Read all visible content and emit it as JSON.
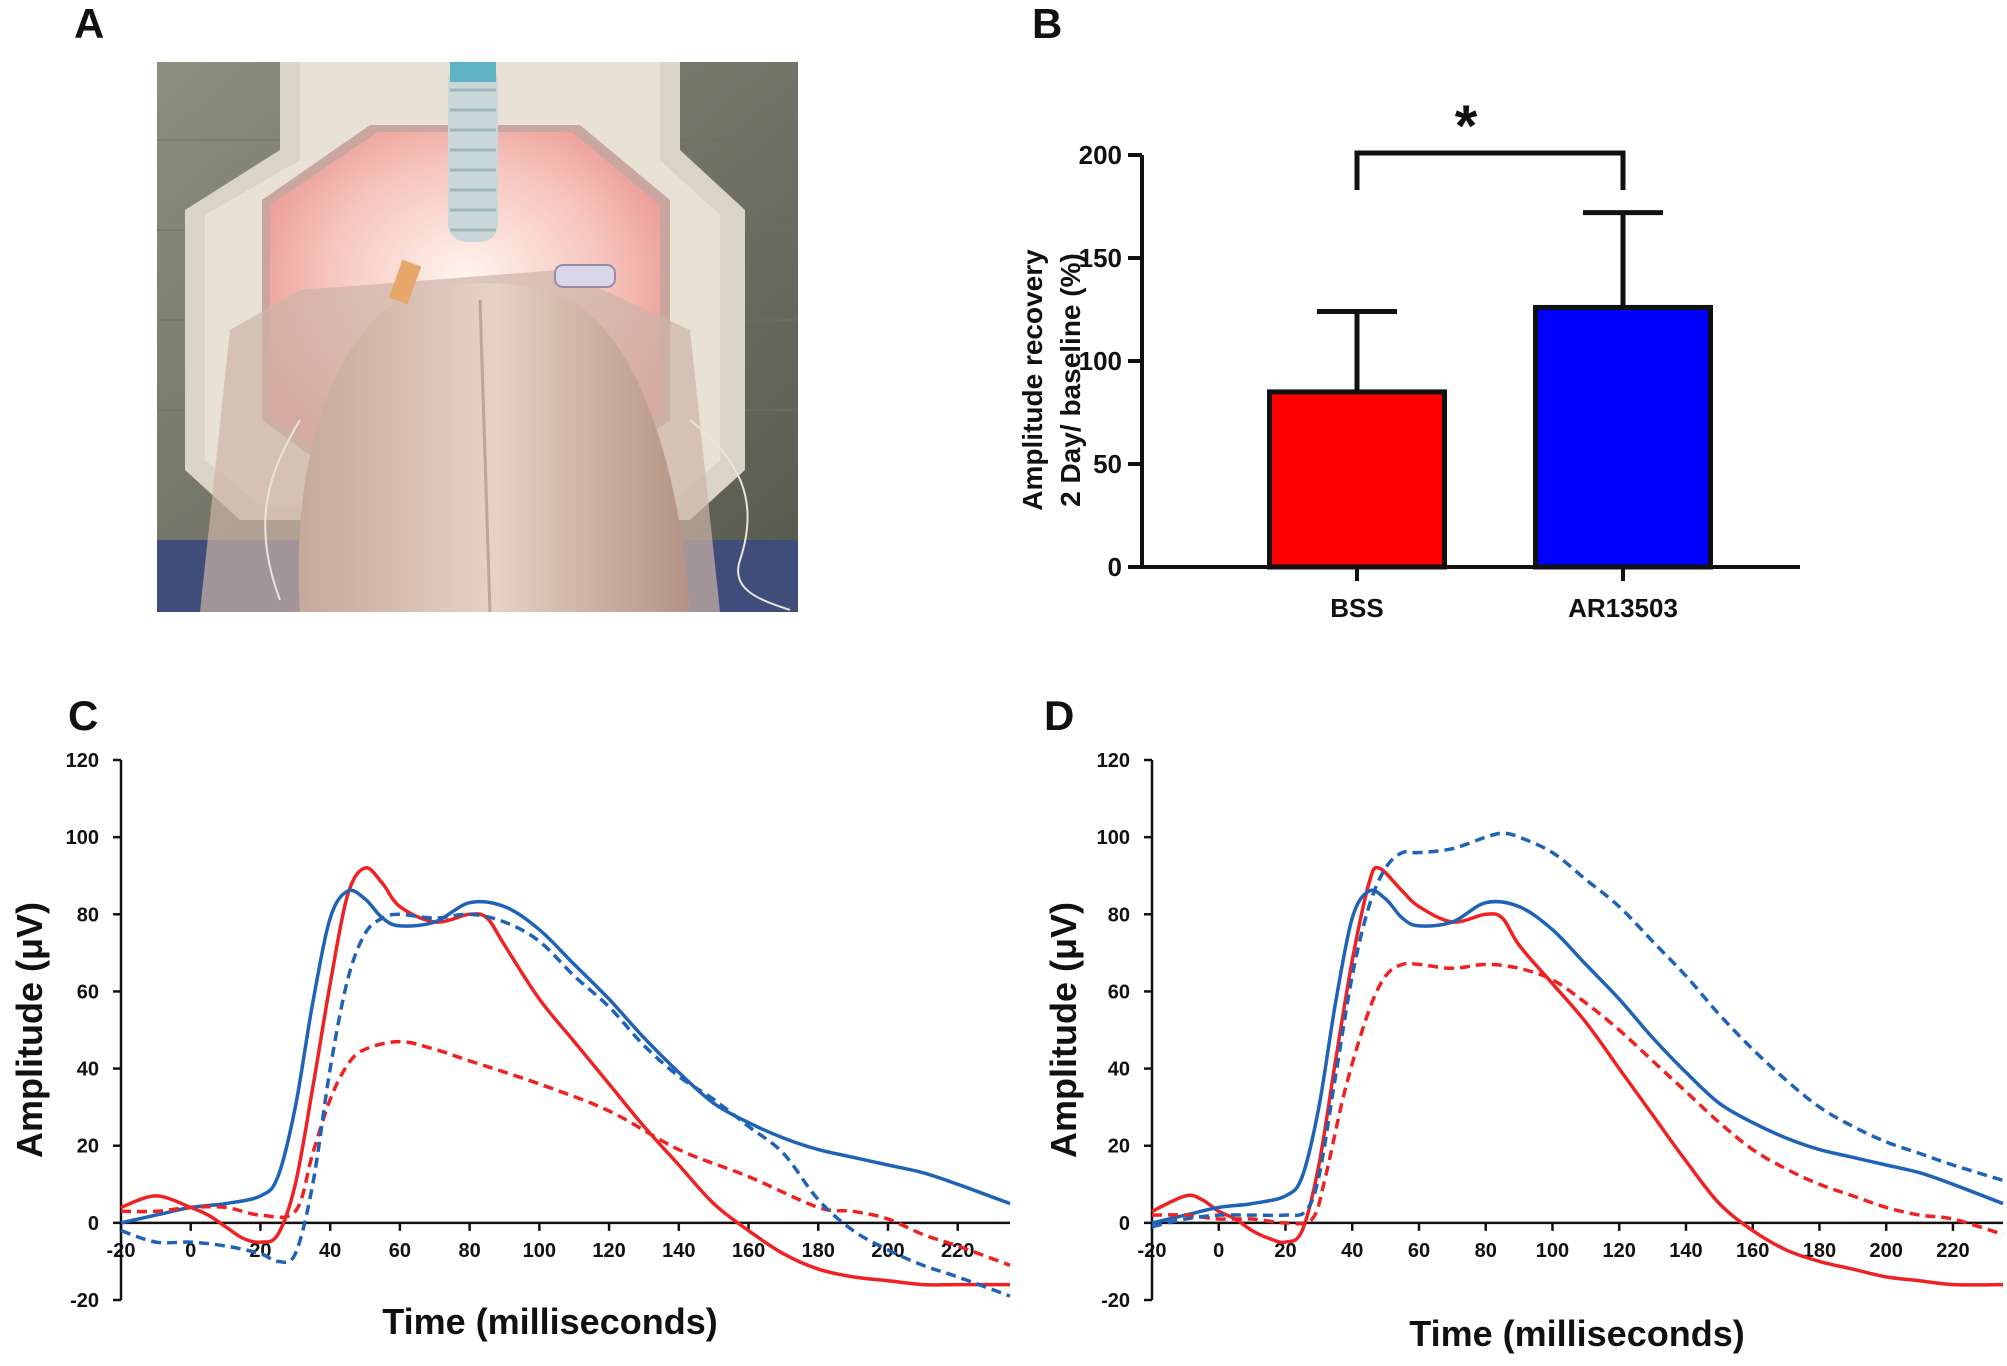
{
  "panels": {
    "a": "A",
    "b": "B",
    "c": "C",
    "d": "D"
  },
  "photo": {
    "description_icon": "animal-in-ganzfeld-dome-photo"
  },
  "colors": {
    "red": "#ff0000",
    "blue": "#0000ff",
    "line_red": "#ee2222",
    "line_blue": "#1f63b8",
    "axis": "#111111"
  },
  "chart_data": [
    {
      "id": "B",
      "type": "bar",
      "categories": [
        "BSS",
        "AR13503"
      ],
      "values": [
        85,
        126
      ],
      "errors": [
        39,
        46
      ],
      "ylabel_line1": "Amplitude recovery",
      "ylabel_line2": "2 Day/ baseline (%)",
      "ylim": [
        0,
        200
      ],
      "yticks": [
        0,
        50,
        100,
        150,
        200
      ],
      "significance": "*"
    },
    {
      "id": "C",
      "type": "line",
      "xlabel": "Time (milliseconds)",
      "ylabel": "Amplitude (μV)",
      "xlim": [
        -20,
        235
      ],
      "ylim": [
        -20,
        120
      ],
      "xticks": [
        -20,
        0,
        20,
        40,
        60,
        80,
        100,
        120,
        140,
        160,
        180,
        200,
        220
      ],
      "yticks": [
        -20,
        0,
        20,
        40,
        60,
        80,
        100,
        120
      ],
      "series": [
        {
          "name": "red-solid",
          "color": "#ee2222",
          "dash": false,
          "points": [
            [
              -20,
              4
            ],
            [
              -10,
              7
            ],
            [
              0,
              4
            ],
            [
              5,
              2
            ],
            [
              10,
              -1
            ],
            [
              15,
              -4
            ],
            [
              20,
              -5
            ],
            [
              25,
              -3
            ],
            [
              30,
              10
            ],
            [
              35,
              35
            ],
            [
              40,
              62
            ],
            [
              45,
              85
            ],
            [
              50,
              92
            ],
            [
              55,
              88
            ],
            [
              60,
              82
            ],
            [
              70,
              78
            ],
            [
              80,
              80
            ],
            [
              85,
              79
            ],
            [
              90,
              72
            ],
            [
              100,
              58
            ],
            [
              110,
              47
            ],
            [
              120,
              36
            ],
            [
              130,
              25
            ],
            [
              140,
              15
            ],
            [
              150,
              5
            ],
            [
              160,
              -2
            ],
            [
              170,
              -8
            ],
            [
              180,
              -12
            ],
            [
              190,
              -14
            ],
            [
              200,
              -15
            ],
            [
              210,
              -16
            ],
            [
              220,
              -16
            ],
            [
              235,
              -16
            ]
          ]
        },
        {
          "name": "blue-solid",
          "color": "#1f63b8",
          "dash": false,
          "points": [
            [
              -20,
              0
            ],
            [
              -10,
              2
            ],
            [
              0,
              4
            ],
            [
              10,
              5
            ],
            [
              20,
              7
            ],
            [
              25,
              12
            ],
            [
              30,
              30
            ],
            [
              35,
              57
            ],
            [
              40,
              79
            ],
            [
              45,
              86
            ],
            [
              50,
              84
            ],
            [
              55,
              79
            ],
            [
              60,
              77
            ],
            [
              70,
              78
            ],
            [
              80,
              83
            ],
            [
              90,
              82
            ],
            [
              100,
              76
            ],
            [
              110,
              67
            ],
            [
              120,
              58
            ],
            [
              130,
              48
            ],
            [
              140,
              39
            ],
            [
              150,
              31
            ],
            [
              160,
              26
            ],
            [
              170,
              22
            ],
            [
              180,
              19
            ],
            [
              190,
              17
            ],
            [
              200,
              15
            ],
            [
              210,
              13
            ],
            [
              220,
              10
            ],
            [
              235,
              5
            ]
          ]
        },
        {
          "name": "red-dashed",
          "color": "#ee2222",
          "dash": true,
          "points": [
            [
              -20,
              3
            ],
            [
              -10,
              3
            ],
            [
              0,
              4
            ],
            [
              10,
              4
            ],
            [
              20,
              2
            ],
            [
              30,
              3
            ],
            [
              35,
              18
            ],
            [
              40,
              32
            ],
            [
              45,
              41
            ],
            [
              50,
              45
            ],
            [
              60,
              47
            ],
            [
              70,
              45
            ],
            [
              80,
              42
            ],
            [
              100,
              36
            ],
            [
              120,
              29
            ],
            [
              140,
              19
            ],
            [
              160,
              12
            ],
            [
              180,
              4
            ],
            [
              190,
              3
            ],
            [
              200,
              1
            ],
            [
              210,
              -3
            ],
            [
              220,
              -6
            ],
            [
              235,
              -11
            ]
          ]
        },
        {
          "name": "blue-dashed",
          "color": "#1f63b8",
          "dash": true,
          "points": [
            [
              -20,
              -2
            ],
            [
              -10,
              -5
            ],
            [
              0,
              -5
            ],
            [
              10,
              -6
            ],
            [
              20,
              -8
            ],
            [
              25,
              -10
            ],
            [
              30,
              -8
            ],
            [
              35,
              10
            ],
            [
              40,
              40
            ],
            [
              45,
              63
            ],
            [
              50,
              75
            ],
            [
              55,
              79
            ],
            [
              60,
              80
            ],
            [
              70,
              79
            ],
            [
              80,
              80
            ],
            [
              90,
              78
            ],
            [
              100,
              73
            ],
            [
              110,
              64
            ],
            [
              120,
              56
            ],
            [
              130,
              46
            ],
            [
              140,
              38
            ],
            [
              150,
              32
            ],
            [
              160,
              25
            ],
            [
              170,
              18
            ],
            [
              180,
              6
            ],
            [
              190,
              -2
            ],
            [
              200,
              -7
            ],
            [
              210,
              -11
            ],
            [
              220,
              -14
            ],
            [
              235,
              -19
            ]
          ]
        }
      ]
    },
    {
      "id": "D",
      "type": "line",
      "xlabel": "Time (milliseconds)",
      "ylabel": "Amplitude (μV)",
      "xlim": [
        -20,
        235
      ],
      "ylim": [
        -20,
        120
      ],
      "xticks": [
        -20,
        0,
        20,
        40,
        60,
        80,
        100,
        120,
        140,
        160,
        180,
        200,
        220
      ],
      "yticks": [
        -20,
        0,
        20,
        40,
        60,
        80,
        100,
        120
      ],
      "series": [
        {
          "name": "red-solid",
          "color": "#ee2222",
          "dash": false,
          "points": [
            [
              -20,
              3
            ],
            [
              -10,
              7
            ],
            [
              -5,
              6
            ],
            [
              0,
              3
            ],
            [
              5,
              1
            ],
            [
              10,
              -2
            ],
            [
              15,
              -4
            ],
            [
              20,
              -5
            ],
            [
              25,
              -2
            ],
            [
              30,
              15
            ],
            [
              35,
              42
            ],
            [
              40,
              68
            ],
            [
              45,
              88
            ],
            [
              48,
              92
            ],
            [
              55,
              86
            ],
            [
              60,
              82
            ],
            [
              70,
              78
            ],
            [
              80,
              80
            ],
            [
              85,
              79
            ],
            [
              90,
              72
            ],
            [
              100,
              62
            ],
            [
              110,
              52
            ],
            [
              120,
              40
            ],
            [
              130,
              28
            ],
            [
              140,
              16
            ],
            [
              150,
              5
            ],
            [
              160,
              -2
            ],
            [
              170,
              -7
            ],
            [
              180,
              -10
            ],
            [
              190,
              -12
            ],
            [
              200,
              -14
            ],
            [
              210,
              -15
            ],
            [
              220,
              -16
            ],
            [
              235,
              -16
            ]
          ]
        },
        {
          "name": "blue-solid",
          "color": "#1f63b8",
          "dash": false,
          "points": [
            [
              -20,
              0
            ],
            [
              -10,
              2
            ],
            [
              0,
              4
            ],
            [
              10,
              5
            ],
            [
              20,
              7
            ],
            [
              25,
              12
            ],
            [
              30,
              30
            ],
            [
              35,
              57
            ],
            [
              40,
              79
            ],
            [
              45,
              86
            ],
            [
              50,
              84
            ],
            [
              55,
              79
            ],
            [
              60,
              77
            ],
            [
              70,
              78
            ],
            [
              80,
              83
            ],
            [
              90,
              82
            ],
            [
              100,
              76
            ],
            [
              110,
              67
            ],
            [
              120,
              58
            ],
            [
              130,
              48
            ],
            [
              140,
              39
            ],
            [
              150,
              31
            ],
            [
              160,
              26
            ],
            [
              170,
              22
            ],
            [
              180,
              19
            ],
            [
              190,
              17
            ],
            [
              200,
              15
            ],
            [
              210,
              13
            ],
            [
              220,
              10
            ],
            [
              235,
              5
            ]
          ]
        },
        {
          "name": "red-dashed",
          "color": "#ee2222",
          "dash": true,
          "points": [
            [
              -20,
              2
            ],
            [
              -10,
              2
            ],
            [
              0,
              1
            ],
            [
              10,
              1
            ],
            [
              20,
              0
            ],
            [
              28,
              1
            ],
            [
              32,
              12
            ],
            [
              38,
              35
            ],
            [
              45,
              55
            ],
            [
              50,
              64
            ],
            [
              55,
              67
            ],
            [
              60,
              67
            ],
            [
              70,
              66
            ],
            [
              80,
              67
            ],
            [
              90,
              66
            ],
            [
              100,
              63
            ],
            [
              110,
              57
            ],
            [
              120,
              50
            ],
            [
              130,
              42
            ],
            [
              140,
              34
            ],
            [
              150,
              26
            ],
            [
              160,
              19
            ],
            [
              170,
              14
            ],
            [
              180,
              10
            ],
            [
              190,
              7
            ],
            [
              200,
              4
            ],
            [
              210,
              2
            ],
            [
              220,
              1
            ],
            [
              235,
              -3
            ]
          ]
        },
        {
          "name": "blue-dashed",
          "color": "#1f63b8",
          "dash": true,
          "points": [
            [
              -20,
              -1
            ],
            [
              -10,
              1
            ],
            [
              0,
              2
            ],
            [
              10,
              2
            ],
            [
              20,
              2
            ],
            [
              26,
              3
            ],
            [
              30,
              12
            ],
            [
              35,
              38
            ],
            [
              40,
              64
            ],
            [
              45,
              82
            ],
            [
              50,
              92
            ],
            [
              55,
              96
            ],
            [
              60,
              96
            ],
            [
              70,
              97
            ],
            [
              80,
              100
            ],
            [
              85,
              101
            ],
            [
              90,
              100
            ],
            [
              100,
              96
            ],
            [
              110,
              89
            ],
            [
              120,
              82
            ],
            [
              130,
              73
            ],
            [
              140,
              64
            ],
            [
              150,
              54
            ],
            [
              160,
              45
            ],
            [
              170,
              37
            ],
            [
              180,
              30
            ],
            [
              190,
              25
            ],
            [
              200,
              21
            ],
            [
              210,
              18
            ],
            [
              220,
              15
            ],
            [
              235,
              11
            ]
          ]
        }
      ]
    }
  ]
}
